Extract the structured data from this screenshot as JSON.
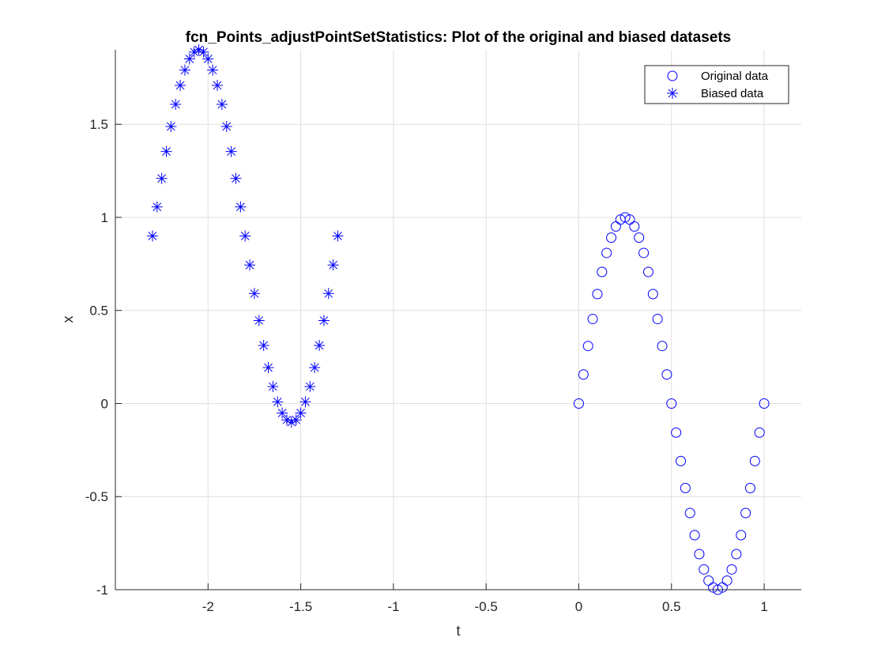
{
  "chart_data": {
    "type": "scatter",
    "title": "fcn_Points_adjustPointSetStatistics: Plot of the original and biased datasets",
    "xlabel": "t",
    "ylabel": "x",
    "xlim": [
      -2.5,
      1.2
    ],
    "ylim": [
      -1,
      1.9
    ],
    "x_ticks": [
      -2,
      -1.5,
      -1,
      -0.5,
      0,
      0.5,
      1
    ],
    "x_tick_labels": [
      "-2",
      "-1.5",
      "-1",
      "-0.5",
      "0",
      "0.5",
      "1"
    ],
    "y_ticks": [
      -1,
      -0.5,
      0,
      0.5,
      1,
      1.5
    ],
    "y_tick_labels": [
      "-1",
      "-0.5",
      "0",
      "0.5",
      "1",
      "1.5"
    ],
    "grid": true,
    "legend_position": "top-right",
    "marker_color": "#0000ff",
    "series": [
      {
        "name": "Original data",
        "marker": "circle",
        "x": [
          0,
          0.025,
          0.05,
          0.075,
          0.1,
          0.125,
          0.15,
          0.175,
          0.2,
          0.225,
          0.25,
          0.275,
          0.3,
          0.325,
          0.35,
          0.375,
          0.4,
          0.425,
          0.45,
          0.475,
          0.5,
          0.525,
          0.55,
          0.575,
          0.6,
          0.625,
          0.65,
          0.675,
          0.7,
          0.725,
          0.75,
          0.775,
          0.8,
          0.825,
          0.85,
          0.875,
          0.9,
          0.925,
          0.95,
          0.975,
          1
        ],
        "y": [
          0,
          0.156,
          0.309,
          0.454,
          0.588,
          0.707,
          0.809,
          0.891,
          0.951,
          0.988,
          1,
          0.988,
          0.951,
          0.891,
          0.809,
          0.707,
          0.588,
          0.454,
          0.309,
          0.156,
          0,
          -0.156,
          -0.309,
          -0.454,
          -0.588,
          -0.707,
          -0.809,
          -0.891,
          -0.951,
          -0.988,
          -1,
          -0.988,
          -0.951,
          -0.891,
          -0.809,
          -0.707,
          -0.588,
          -0.454,
          -0.309,
          -0.156,
          0
        ]
      },
      {
        "name": "Biased data",
        "marker": "asterisk",
        "x": [
          -2.3,
          -2.275,
          -2.25,
          -2.225,
          -2.2,
          -2.175,
          -2.15,
          -2.125,
          -2.1,
          -2.075,
          -2.05,
          -2.025,
          -2,
          -1.975,
          -1.95,
          -1.925,
          -1.9,
          -1.875,
          -1.85,
          -1.825,
          -1.8,
          -1.775,
          -1.75,
          -1.725,
          -1.7,
          -1.675,
          -1.65,
          -1.625,
          -1.6,
          -1.575,
          -1.55,
          -1.525,
          -1.5,
          -1.475,
          -1.45,
          -1.425,
          -1.4,
          -1.375,
          -1.35,
          -1.325,
          -1.3
        ],
        "y": [
          0.9,
          1.056,
          1.209,
          1.354,
          1.488,
          1.607,
          1.709,
          1.791,
          1.851,
          1.888,
          1.9,
          1.888,
          1.851,
          1.791,
          1.709,
          1.607,
          1.488,
          1.354,
          1.209,
          1.056,
          0.9,
          0.744,
          0.591,
          0.446,
          0.312,
          0.193,
          0.091,
          0.009,
          -0.051,
          -0.088,
          -0.1,
          -0.088,
          -0.051,
          0.009,
          0.091,
          0.193,
          0.312,
          0.446,
          0.591,
          0.744,
          0.9
        ]
      }
    ]
  }
}
